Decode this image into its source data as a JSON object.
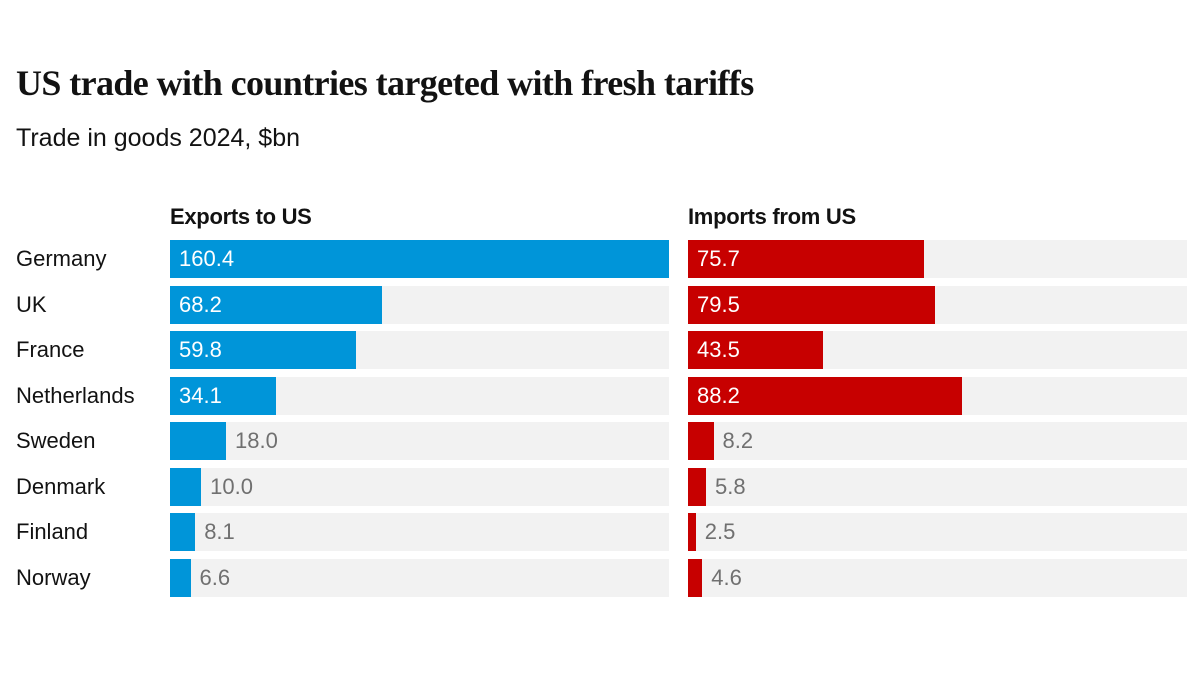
{
  "chart_data": {
    "type": "bar",
    "orientation": "horizontal",
    "title": "US trade with countries targeted with fresh tariffs",
    "subtitle": "Trade in goods 2024, $bn",
    "categories": [
      "Germany",
      "UK",
      "France",
      "Netherlands",
      "Sweden",
      "Denmark",
      "Finland",
      "Norway"
    ],
    "series": [
      {
        "name": "Exports to US",
        "color": "#0095d9",
        "values": [
          160.4,
          68.2,
          59.8,
          34.1,
          18.0,
          10.0,
          8.1,
          6.6
        ],
        "labels": [
          "160.4",
          "68.2",
          "59.8",
          "34.1",
          "18.0",
          "10.0",
          "8.1",
          "6.6"
        ]
      },
      {
        "name": "Imports from US",
        "color": "#c70000",
        "values": [
          75.7,
          79.5,
          43.5,
          88.2,
          8.2,
          5.8,
          2.5,
          4.6
        ],
        "labels": [
          "75.7",
          "79.5",
          "43.5",
          "88.2",
          "8.2",
          "5.8",
          "2.5",
          "4.6"
        ]
      }
    ],
    "xlim": [
      0,
      160.4
    ],
    "track_color": "#f2f2f2",
    "grid": false,
    "legend": "panel-headers"
  }
}
